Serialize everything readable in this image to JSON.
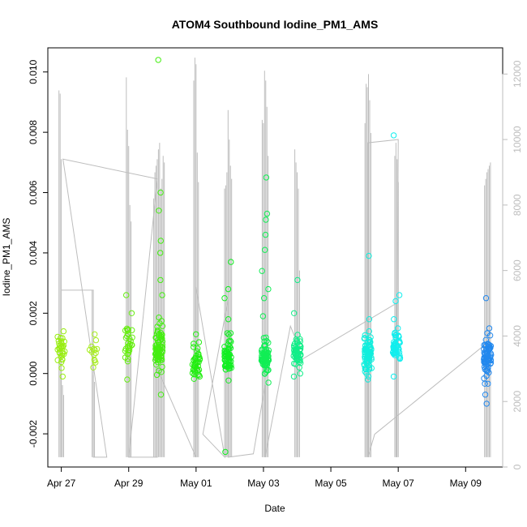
{
  "chart_data": {
    "type": "scatter",
    "title": "ATOM4 Southbound Iodine_PM1_AMS",
    "xlabel": "Date",
    "ylabel": "Iodine_PM1_AMS",
    "x_ticks": [
      "Apr 27",
      "Apr 29",
      "May 01",
      "May 03",
      "May 05",
      "May 07",
      "May 09"
    ],
    "y_ticks": [
      "-0.002",
      "0.000",
      "0.002",
      "0.004",
      "0.006",
      "0.008",
      "0.010"
    ],
    "y2_ticks": [
      "0",
      "2000",
      "4000",
      "6000",
      "8000",
      "10000",
      "12000"
    ],
    "xlim": [
      -0.4,
      13.1
    ],
    "ylim": [
      -0.0031,
      0.0108
    ],
    "y2lim": [
      0,
      12800
    ],
    "grid": false,
    "legend": "none",
    "colors": {
      "secondary_series": "#bdbdbd",
      "axis": "#000000",
      "right_axis": "#bdbdbd"
    },
    "clusters": [
      {
        "x": 0.0,
        "color": "#99ee11",
        "median": 0.0008,
        "spread": 0.0006,
        "n": 30,
        "extra": [
          0.0014,
          -0.0001
        ]
      },
      {
        "x": 0.95,
        "color": "#a8ee22",
        "median": 0.0007,
        "spread": 0.0004,
        "n": 12,
        "extra": [
          0.0013,
          0.0002
        ]
      },
      {
        "x": 2.0,
        "color": "#66ee11",
        "median": 0.001,
        "spread": 0.0006,
        "n": 30,
        "extra": [
          0.0026,
          0.002,
          -0.0002
        ]
      },
      {
        "x": 2.9,
        "color": "#44ee11",
        "median": 0.0008,
        "spread": 0.0008,
        "n": 80,
        "extra": [
          0.0104,
          0.006,
          0.0054,
          0.0044,
          0.004,
          0.0031,
          0.0026,
          -0.0007
        ]
      },
      {
        "x": 4.0,
        "color": "#22ee11",
        "median": 0.0004,
        "spread": 0.0005,
        "n": 40,
        "extra": [
          0.0013,
          -0.0001
        ]
      },
      {
        "x": 4.95,
        "color": "#11ee22",
        "median": 0.0005,
        "spread": 0.0006,
        "n": 60,
        "extra": [
          0.0037,
          0.0028,
          0.0025,
          0.0018,
          -0.0026
        ]
      },
      {
        "x": 6.05,
        "color": "#11ee55",
        "median": 0.0005,
        "spread": 0.0005,
        "n": 70,
        "extra": [
          0.0065,
          0.0053,
          0.0051,
          0.0046,
          0.0041,
          0.0034,
          0.0028,
          0.0025,
          0.0019,
          -0.0003
        ]
      },
      {
        "x": 7.0,
        "color": "#11ee88",
        "median": 0.0007,
        "spread": 0.0005,
        "n": 50,
        "extra": [
          0.0031,
          0.002,
          -0.0001
        ]
      },
      {
        "x": 9.1,
        "color": "#11eedd",
        "median": 0.0006,
        "spread": 0.0005,
        "n": 80,
        "extra": [
          0.0039,
          0.0018,
          0.0014,
          -0.0002
        ]
      },
      {
        "x": 9.95,
        "color": "#11eeee",
        "median": 0.0009,
        "spread": 0.0005,
        "n": 50,
        "extra": [
          0.0079,
          0.0026,
          0.0024,
          0.0018,
          0.0015,
          -0.0001
        ]
      },
      {
        "x": 12.65,
        "color": "#2288ee",
        "median": 0.0005,
        "spread": 0.0006,
        "n": 80,
        "extra": [
          0.0025,
          0.0015,
          -0.0007,
          -0.001
        ]
      }
    ],
    "secondary_spikes": [
      {
        "x": 0.0,
        "heights": [
          11500,
          11400,
          3000,
          2500,
          2200
        ]
      },
      {
        "x": 0.95,
        "heights": [
          5400,
          2800,
          2600
        ]
      },
      {
        "x": 2.0,
        "heights": [
          11900,
          10300,
          9800,
          8000,
          7500
        ]
      },
      {
        "x": 2.9,
        "heights": [
          8200,
          9000,
          9200,
          9400,
          9700,
          9900,
          8500,
          8800,
          9500,
          9300
        ]
      },
      {
        "x": 4.0,
        "heights": [
          11800,
          12500,
          12300,
          9600,
          8700
        ]
      },
      {
        "x": 4.95,
        "heights": [
          8500,
          8600,
          9000,
          10900,
          10000,
          9200,
          8800
        ]
      },
      {
        "x": 6.05,
        "heights": [
          10600,
          10500,
          12100,
          11800,
          11000,
          9500
        ]
      },
      {
        "x": 7.0,
        "heights": [
          9700,
          9300,
          9000,
          8500,
          6000
        ]
      },
      {
        "x": 9.1,
        "heights": [
          10500,
          11700,
          11600,
          12000,
          11200,
          10200
        ]
      },
      {
        "x": 9.95,
        "heights": [
          9500,
          9900,
          9400,
          8700
        ]
      },
      {
        "x": 12.65,
        "heights": [
          8600,
          8800,
          9000,
          9100,
          9200,
          9300
        ]
      }
    ],
    "secondary_path": [
      [
        0.0,
        9400
      ],
      [
        0.0,
        300
      ],
      [
        0.0,
        5400
      ],
      [
        0.95,
        5400
      ],
      [
        0.95,
        300
      ],
      [
        1.35,
        300
      ],
      [
        0.05,
        9400
      ],
      [
        2.85,
        8800
      ],
      [
        2.0,
        300
      ],
      [
        2.85,
        300
      ],
      [
        2.85,
        3000
      ],
      [
        4.0,
        300
      ],
      [
        4.0,
        5500
      ],
      [
        4.85,
        300
      ],
      [
        4.2,
        1000
      ],
      [
        4.95,
        5100
      ],
      [
        4.95,
        300
      ],
      [
        5.7,
        400
      ],
      [
        6.05,
        2500
      ],
      [
        6.05,
        300
      ],
      [
        6.8,
        4300
      ],
      [
        7.0,
        3800
      ],
      [
        7.0,
        300
      ],
      [
        7.0,
        3200
      ],
      [
        9.95,
        5000
      ],
      [
        9.95,
        300
      ],
      [
        10.0,
        10000
      ],
      [
        9.1,
        9900
      ],
      [
        9.1,
        300
      ],
      [
        9.3,
        1000
      ],
      [
        12.65,
        3800
      ]
    ]
  }
}
